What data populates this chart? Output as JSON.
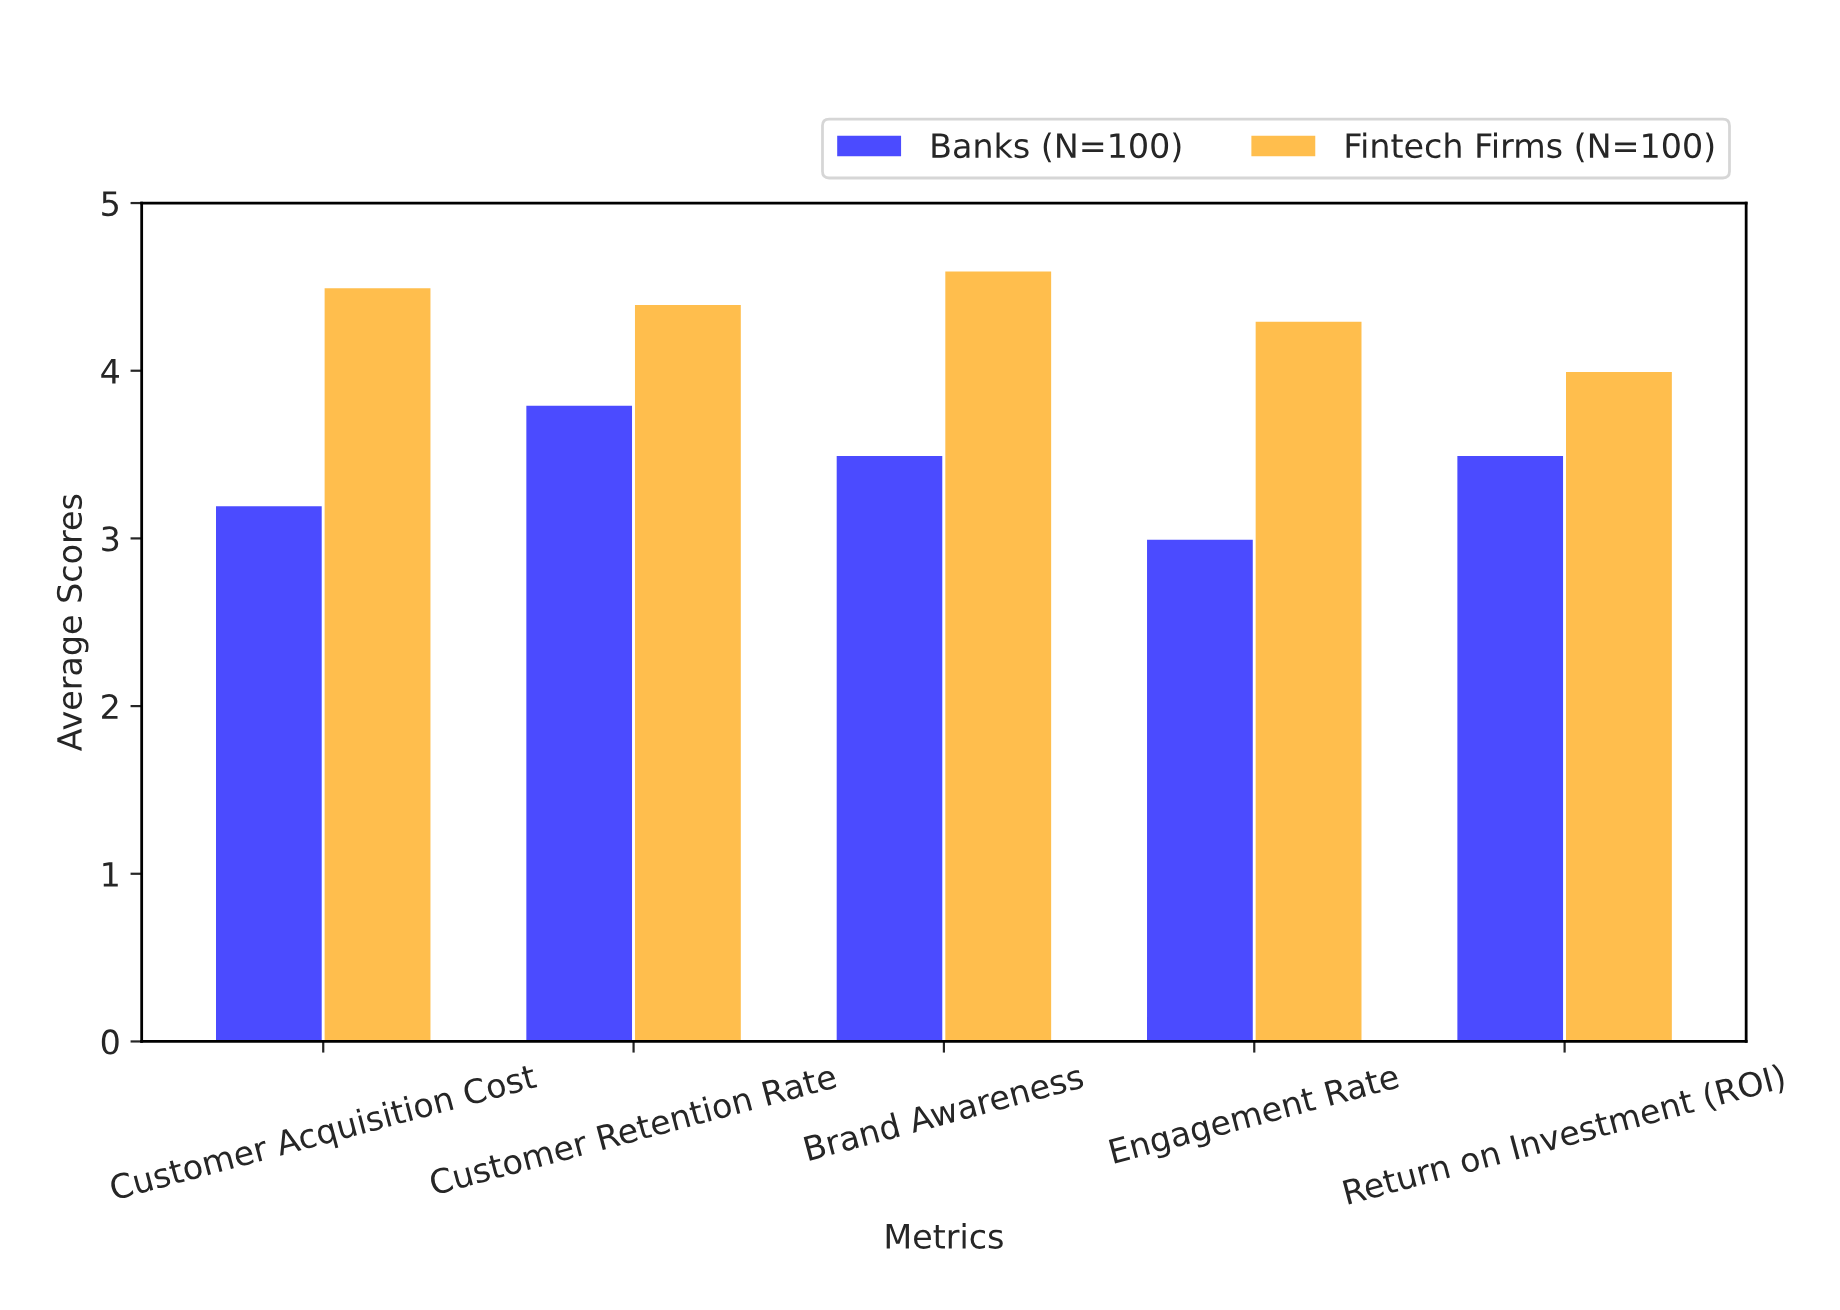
{
  "chart_data": {
    "type": "bar",
    "xlabel": "Metrics",
    "ylabel": "Average Scores",
    "categories": [
      "Customer Acquisition Cost",
      "Customer Retention Rate",
      "Brand Awareness",
      "Engagement Rate",
      "Return on Investment (ROI)"
    ],
    "series": [
      {
        "name": "Banks (N=100)",
        "color": "#4b4bff",
        "values": [
          3.2,
          3.8,
          3.5,
          3.0,
          3.5
        ]
      },
      {
        "name": "Fintech Firms (N=100)",
        "color": "#ffbe4d",
        "values": [
          4.5,
          4.4,
          4.6,
          4.3,
          4.0
        ]
      }
    ],
    "ylim": [
      0,
      5
    ],
    "yticks": [
      0,
      1,
      2,
      3,
      4,
      5
    ],
    "grid": false,
    "legend": "top right"
  }
}
